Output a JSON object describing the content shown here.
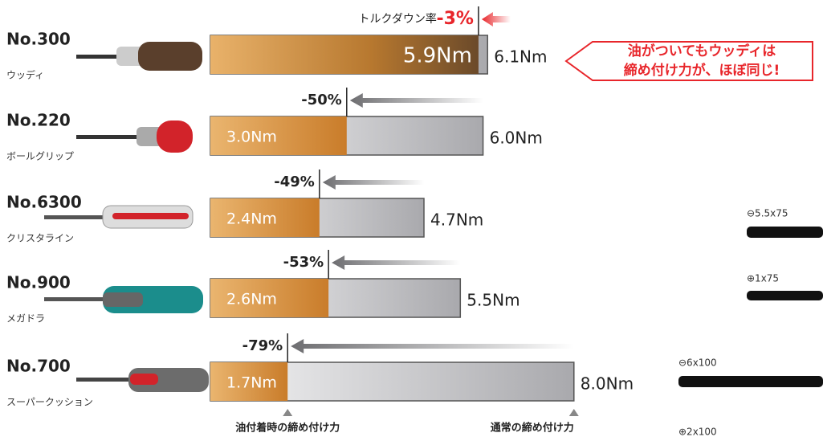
{
  "chart_data": {
    "type": "bar",
    "orientation": "horizontal",
    "annotation": "トルクダウン率",
    "categories": [
      "No.300",
      "No.220",
      "No.6300",
      "No.900",
      "No.700"
    ],
    "category_names": [
      "ウッディ",
      "ボールグリップ",
      "クリスタライン",
      "メガドラ",
      "スーパークッション"
    ],
    "series": [
      {
        "name": "油付着時の締め付け力",
        "color": "#d98e3c",
        "values": [
          5.9,
          3.0,
          2.4,
          2.6,
          1.7
        ],
        "value_labels": [
          "5.9Nm",
          "3.0Nm",
          "2.4Nm",
          "2.6Nm",
          "1.7Nm"
        ]
      },
      {
        "name": "通常の締め付け力",
        "color": "#b5b5b8",
        "values": [
          6.1,
          6.0,
          4.7,
          5.5,
          8.0
        ],
        "value_labels": [
          "6.1Nm",
          "6.0Nm",
          "4.7Nm",
          "5.5Nm",
          "8.0Nm"
        ]
      }
    ],
    "reductions": {
      "values": [
        -3,
        -50,
        -49,
        -53,
        -79
      ],
      "value_labels": [
        "-3%",
        "-50%",
        "-49%",
        "-53%",
        "-79%"
      ]
    },
    "callout": [
      "油がついてもウッディは",
      "締め付け力が、ほぼ同じ!"
    ],
    "side_labels": [
      "⊖5.5x75",
      "⊕1x75",
      "⊖6x100",
      "⊕2x100"
    ]
  }
}
